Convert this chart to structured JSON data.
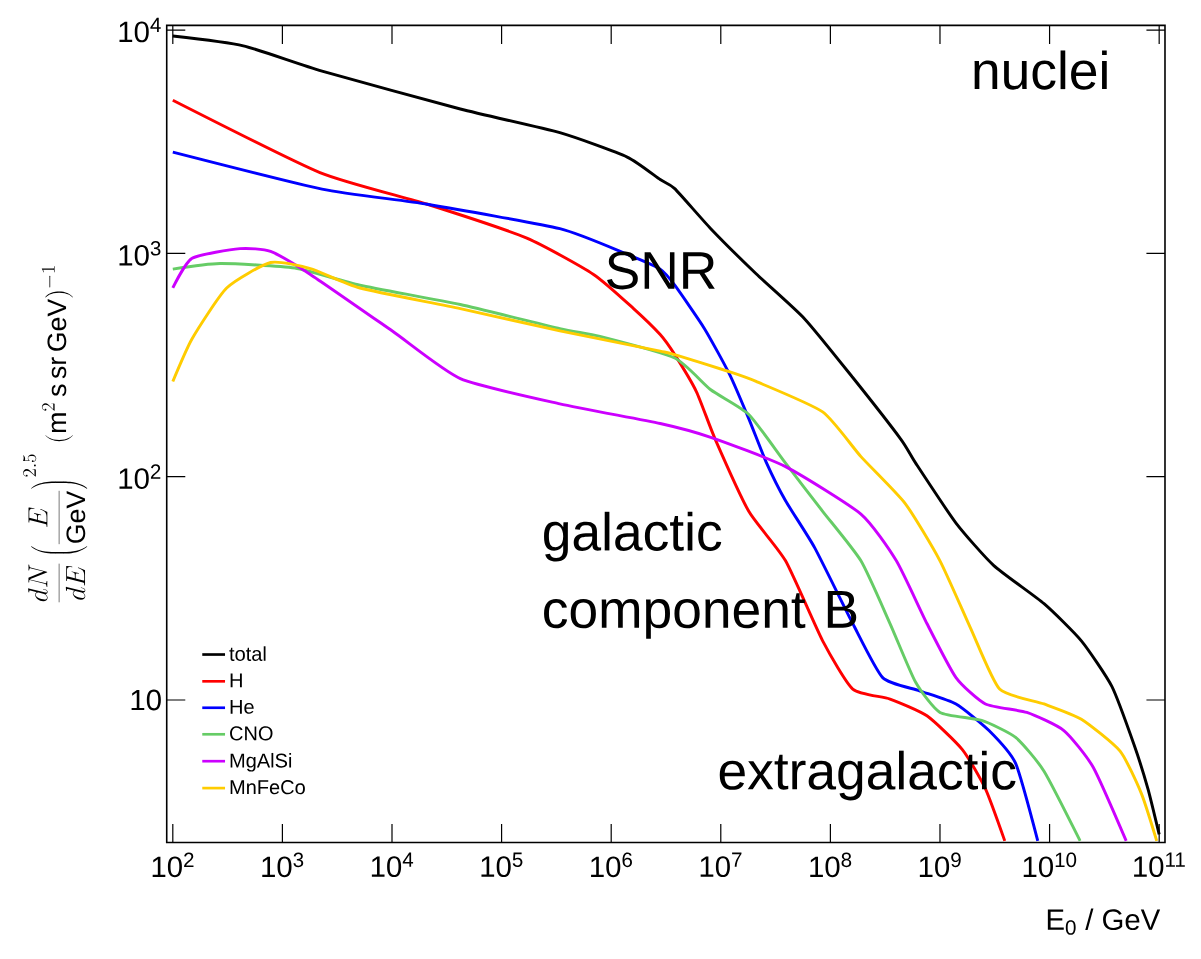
{
  "chart_data": {
    "type": "line",
    "xlabel": "E$_{0}$ / GeV",
    "ylabel": "\\frac{dN}{dE}\\left(\\frac{E}{\\mathrm{GeV}}\\right)^{2.5}\\,(\\mathrm{m}^{2}\\,\\mathrm{s}\\,\\mathrm{sr}\\,\\mathrm{GeV})^{-1}",
    "log": "xy",
    "xlim": [
      88,
      113000000000.0
    ],
    "ylim": [
      2.3,
      10500
    ],
    "xticks": [
      {
        "value": 100,
        "label": "10$^{2}$"
      },
      {
        "value": 1000,
        "label": "10$^{3}$"
      },
      {
        "value": 10000,
        "label": "10$^{4}$"
      },
      {
        "value": 100000,
        "label": "10$^{5}$"
      },
      {
        "value": 1000000,
        "label": "10$^{6}$"
      },
      {
        "value": 10000000,
        "label": "10$^{7}$"
      },
      {
        "value": 100000000,
        "label": "10$^{8}$"
      },
      {
        "value": 1000000000,
        "label": "10$^{9}$"
      },
      {
        "value": 10000000000,
        "label": "10$^{10}$"
      },
      {
        "value": 100000000000,
        "label": "10$^{11}$"
      }
    ],
    "yticks": [
      10,
      {
        "value": 100,
        "label": "10$^{2}$"
      },
      {
        "value": 1000,
        "label": "10$^{3}$"
      },
      {
        "value": 10000,
        "label": "10$^{4}$"
      }
    ],
    "legend": "bottom left",
    "grid": false,
    "series": [
      {
        "name": "total",
        "color": "#000000",
        "x": [
          100,
          440,
          2300,
          42000,
          340000,
          1400000,
          2800000,
          3800000,
          8100000,
          21000000,
          58000000,
          160000000,
          440000000,
          600000000,
          1400000000,
          3100000000,
          8900000000,
          19500000000,
          37000000000,
          59000000000,
          79000000000,
          100000000000
        ],
        "values": [
          9400,
          8500,
          6550,
          4430,
          3470,
          2700,
          2140,
          1950,
          1290,
          810,
          510,
          278,
          147,
          115,
          62,
          40,
          27,
          18.4,
          11.5,
          6.3,
          4.0,
          2.5
        ]
      },
      {
        "name": "H",
        "color": "#ff0000",
        "x": [
          100,
          2200,
          21000,
          170000,
          690000,
          1600000,
          2800000,
          3800000,
          6000000,
          8900000,
          18000000,
          39000000,
          85000000,
          160000000,
          350000000,
          760000000,
          1600000000,
          2600000000,
          3900000000
        ],
        "values": [
          4850,
          2300,
          1660,
          1170,
          805,
          566,
          433,
          352,
          240,
          147,
          70,
          42,
          18.4,
          11.2,
          10.1,
          8.5,
          6.0,
          4.0,
          2.34
        ]
      },
      {
        "name": "He",
        "color": "#0000ff",
        "x": [
          100,
          2300,
          21000,
          340000,
          1400000,
          2800000,
          3800000,
          7100000,
          12000000,
          18000000,
          26000000,
          39000000,
          72000000,
          160000000,
          300000000,
          650000000,
          1400000000,
          2800000000,
          4900000000,
          7800000000
        ],
        "values": [
          2840,
          1940,
          1660,
          1290,
          990,
          850,
          720,
          460,
          288,
          182,
          116,
          78,
          48,
          22,
          12.6,
          11.0,
          9.6,
          7.3,
          5.2,
          2.34
        ]
      },
      {
        "name": "CNO",
        "color": "#66cc66",
        "x": [
          100,
          270,
          1300,
          5100,
          42000,
          340000,
          790000,
          3800000,
          8100000,
          18000000,
          39000000,
          85000000,
          190000000,
          350000000,
          600000000,
          1000000000,
          2400000000,
          4900000000,
          8900000000,
          19000000000
        ],
        "values": [
          850,
          900,
          860,
          720,
          590,
          460,
          425,
          340,
          245,
          190,
          115,
          70,
          42,
          22,
          12,
          8.8,
          8.1,
          6.8,
          4.8,
          2.34
        ]
      },
      {
        "name": "MgAlSi",
        "color": "#cc00ff",
        "x": [
          100,
          150,
          410,
          780,
          1800,
          10000,
          42000,
          340000,
          2800000,
          8100000,
          39000000,
          190000000,
          400000000,
          760000000,
          1400000000,
          2600000000,
          6200000000,
          13500000000,
          25000000000,
          50000000000
        ],
        "values": [
          700,
          950,
          1050,
          1020,
          805,
          450,
          275,
          212,
          173,
          150,
          111,
          68,
          42,
          22,
          12.6,
          9.6,
          8.8,
          7.3,
          5.0,
          2.34
        ]
      },
      {
        "name": "MnFeCo",
        "color": "#ffcc00",
        "x": [
          100,
          150,
          310,
          780,
          1800,
          5100,
          42000,
          340000,
          2800000,
          3800000,
          12000000,
          21000000,
          85000000,
          190000000,
          480000000,
          1000000000,
          1900000000,
          3500000000,
          8900000000,
          19500000000,
          44000000000,
          69000000000,
          95000000000
        ],
        "values": [
          267,
          415,
          700,
          910,
          855,
          700,
          566,
          450,
          365,
          352,
          295,
          267,
          195,
          123,
          76,
          42,
          21,
          11.2,
          9.6,
          8.2,
          5.9,
          3.8,
          2.34
        ]
      }
    ],
    "annotations": [
      "nuclei",
      "SNR",
      "galactic component B",
      "extragalactic"
    ]
  }
}
